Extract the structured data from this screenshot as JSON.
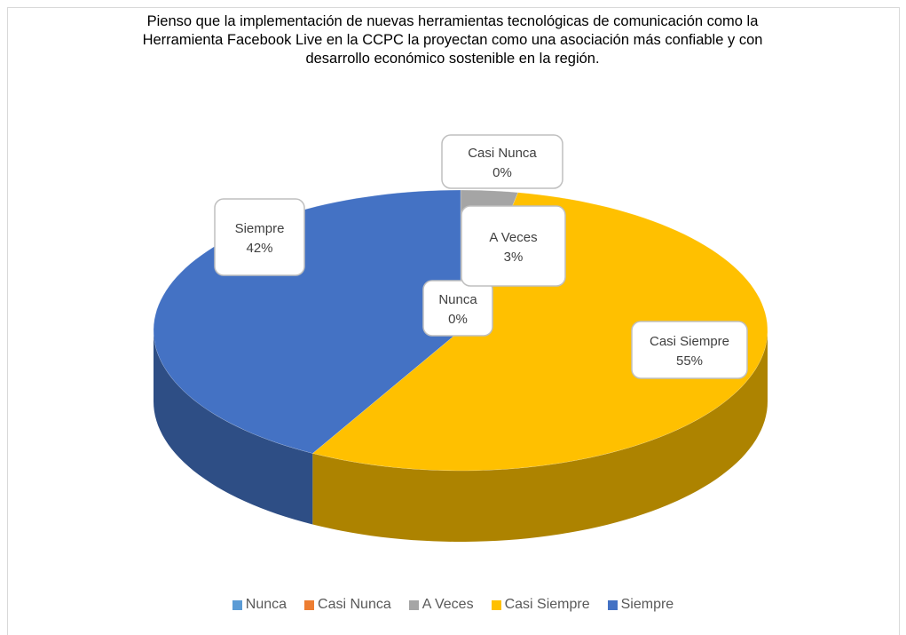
{
  "chart_data": {
    "type": "pie",
    "title": "Pienso que la implementación de nuevas herramientas tecnológicas de comunicación como la Herramienta Facebook Live en la CCPC la proyectan como una asociación más confiable y con desarrollo económico sostenible en la región.",
    "categories": [
      "Nunca",
      "Casi Nunca",
      "A Veces",
      "Casi Siempre",
      "Siempre"
    ],
    "values": [
      0,
      0,
      3,
      55,
      42
    ],
    "value_labels": [
      "0%",
      "0%",
      "3%",
      "55%",
      "42%"
    ],
    "colors": [
      "#5b9bd5",
      "#ed7d31",
      "#a5a5a5",
      "#ffc000",
      "#4472c4"
    ],
    "legend": "bottom"
  }
}
